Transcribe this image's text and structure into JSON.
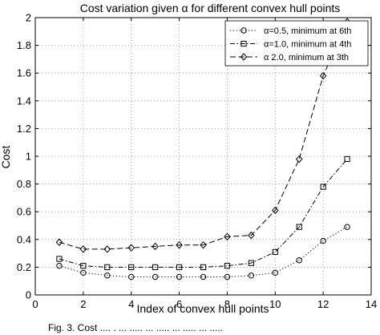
{
  "chart_data": {
    "type": "line",
    "title": "Cost variation given α for different convex hull points",
    "xlabel": "Index of convex hull points",
    "ylabel": "Cost",
    "xlim": [
      0,
      14
    ],
    "ylim": [
      0,
      2
    ],
    "xticks": [
      0,
      2,
      4,
      6,
      8,
      10,
      12,
      14
    ],
    "yticks": [
      0,
      0.2,
      0.4,
      0.6,
      0.8,
      1,
      1.2,
      1.4,
      1.6,
      1.8,
      2
    ],
    "grid": true,
    "legend_position": "top-right",
    "x": [
      1,
      2,
      3,
      4,
      5,
      6,
      7,
      8,
      9,
      10,
      11,
      12,
      13
    ],
    "series": [
      {
        "name": "α=0.5, minimum at 6th",
        "marker": "circle",
        "line_style": "dotted",
        "values": [
          0.21,
          0.16,
          0.14,
          0.13,
          0.13,
          0.13,
          0.13,
          0.13,
          0.14,
          0.16,
          0.25,
          0.39,
          0.49
        ]
      },
      {
        "name": "α=1.0, minimum at 4th",
        "marker": "square",
        "line_style": "dashdot",
        "values": [
          0.26,
          0.21,
          0.2,
          0.2,
          0.2,
          0.2,
          0.2,
          0.21,
          0.23,
          0.31,
          0.49,
          0.78,
          0.98
        ]
      },
      {
        "name": "α 2.0, minimum at 3th",
        "marker": "diamond",
        "line_style": "dashed",
        "values": [
          0.38,
          0.33,
          0.33,
          0.34,
          0.35,
          0.36,
          0.36,
          0.42,
          0.43,
          0.61,
          0.98,
          1.58,
          1.97
        ]
      }
    ]
  },
  "caption": {
    "text": "Fig. 3.  Cost .... . ... ..... ... ..... ... ..... ... ....."
  }
}
